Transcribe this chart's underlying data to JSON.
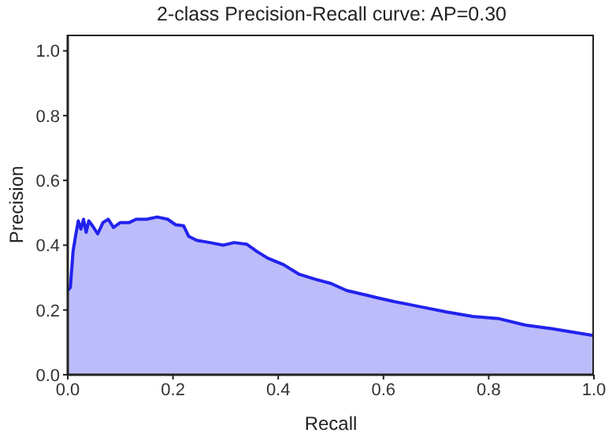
{
  "chart_data": {
    "type": "area",
    "title": "2-class Precision-Recall curve: AP=0.30",
    "xlabel": "Recall",
    "ylabel": "Precision",
    "xlim": [
      0,
      1
    ],
    "ylim": [
      0,
      1.05
    ],
    "xticks": [
      {
        "value": 0,
        "label": "0.0"
      },
      0.2,
      0.4,
      0.6,
      0.8,
      {
        "value": 1,
        "label": "1.0"
      }
    ],
    "yticks": [
      {
        "value": 0,
        "label": "0.0"
      },
      0.2,
      0.4,
      0.6,
      0.8,
      {
        "value": 1,
        "label": "1.0"
      }
    ],
    "grid": false,
    "marker": "none",
    "line_style": "solid",
    "x": [
      0,
      0.005,
      0.01,
      0.015,
      0.02,
      0.025,
      0.03,
      0.035,
      0.04,
      0.047,
      0.057,
      0.067,
      0.077,
      0.087,
      0.1,
      0.117,
      0.13,
      0.15,
      0.17,
      0.19,
      0.205,
      0.22,
      0.23,
      0.245,
      0.27,
      0.296,
      0.316,
      0.34,
      0.36,
      0.38,
      0.41,
      0.44,
      0.47,
      0.5,
      0.53,
      0.57,
      0.59,
      0.62,
      0.67,
      0.72,
      0.77,
      0.82,
      0.87,
      0.92,
      0.97,
      1.0
    ],
    "series": [
      {
        "color": "#2222ee",
        "values": [
          0.26,
          0.27,
          0.38,
          0.43,
          0.475,
          0.45,
          0.48,
          0.44,
          0.475,
          0.46,
          0.435,
          0.47,
          0.48,
          0.455,
          0.47,
          0.47,
          0.48,
          0.48,
          0.487,
          0.48,
          0.463,
          0.46,
          0.427,
          0.415,
          0.408,
          0.4,
          0.408,
          0.403,
          0.38,
          0.36,
          0.34,
          0.31,
          0.295,
          0.282,
          0.26,
          0.245,
          0.237,
          0.226,
          0.21,
          0.194,
          0.18,
          0.173,
          0.153,
          0.142,
          0.129,
          0.121
        ]
      }
    ]
  }
}
